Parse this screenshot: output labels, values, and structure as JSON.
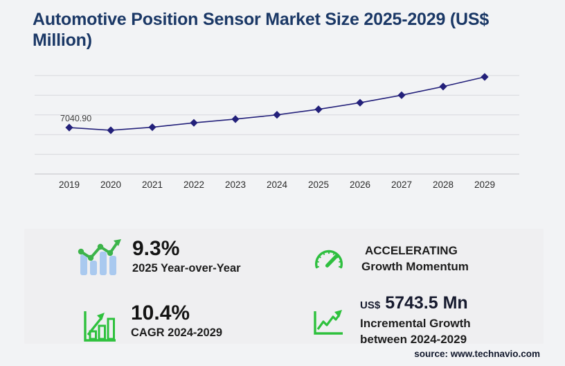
{
  "page": {
    "title": "Automotive Position Sensor Market Size 2025-2029 (US$ Million)",
    "source": "source: www.technavio.com"
  },
  "chart_data": {
    "type": "line",
    "title": "Automotive Position Sensor Market Size 2025-2029 (US$ Million)",
    "x": [
      "2019",
      "2020",
      "2021",
      "2022",
      "2023",
      "2024",
      "2025",
      "2026",
      "2027",
      "2028",
      "2029"
    ],
    "values": [
      7040.9,
      6630,
      7090,
      7760,
      8320,
      8972.4,
      9806.8,
      10810,
      11950,
      13260,
      14715.9
    ],
    "unit": "US$ Million",
    "data_labels": {
      "2019": "7040.90"
    },
    "ylim": [
      0,
      16400
    ],
    "grid": true,
    "legend": false,
    "marker": "diamond",
    "line_color": "#23207a"
  },
  "stats": {
    "yoy": {
      "value": "9.3%",
      "label": "2025 Year-over-Year",
      "icon": "trend-bars-icon"
    },
    "cagr": {
      "value": "10.4%",
      "label": "CAGR 2024-2029",
      "icon": "bar-chart-arrow-icon"
    },
    "momentum": {
      "value": "ACCELERATING",
      "label": "Growth Momentum",
      "icon": "gauge-icon"
    },
    "incremental": {
      "currency": "US$",
      "value": "5743.5 Mn",
      "label_line1": "Incremental Growth",
      "label_line2": "between 2024-2029",
      "icon": "line-growth-icon"
    }
  },
  "colors": {
    "title_navy": "#1b3866",
    "line_indigo": "#23207a",
    "icon_green": "#2ec13d",
    "trend_green": "#3cb44a",
    "bar_blue": "#a9c9ef",
    "gridline": "#d8d8dd"
  }
}
